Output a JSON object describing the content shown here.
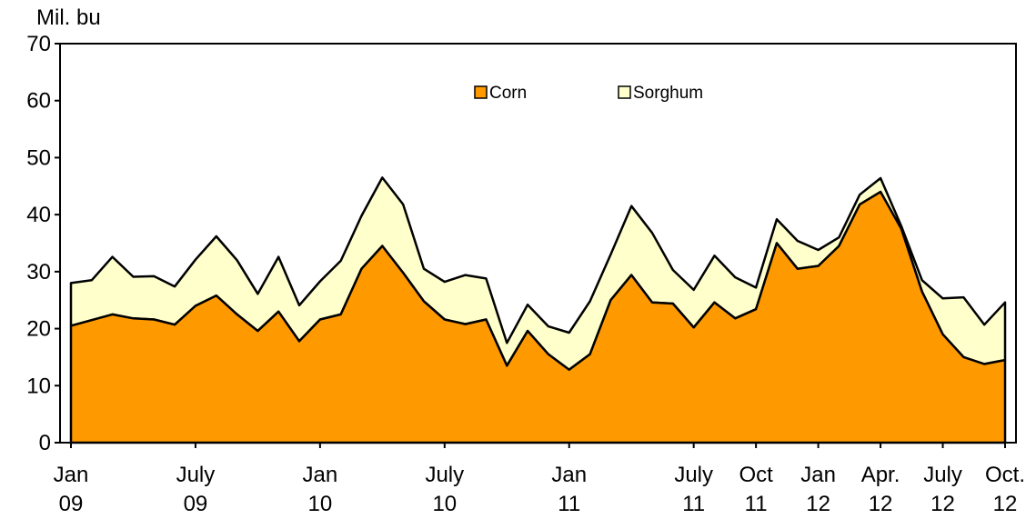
{
  "chart_data": {
    "type": "area",
    "stacked": true,
    "ylabel": "Mil. bu",
    "ylim": [
      0,
      70
    ],
    "yticks": [
      0,
      10,
      20,
      30,
      40,
      50,
      60,
      70
    ],
    "grid": false,
    "legend_position": "top-center",
    "x_tick_labels": [
      {
        "month": 0,
        "line1": "Jan",
        "line2": "09"
      },
      {
        "month": 6,
        "line1": "July",
        "line2": "09"
      },
      {
        "month": 12,
        "line1": "Jan",
        "line2": "10"
      },
      {
        "month": 18,
        "line1": "July",
        "line2": "10"
      },
      {
        "month": 24,
        "line1": "Jan",
        "line2": "11"
      },
      {
        "month": 30,
        "line1": "July",
        "line2": "11"
      },
      {
        "month": 33,
        "line1": "Oct",
        "line2": "11"
      },
      {
        "month": 36,
        "line1": "Jan",
        "line2": "12"
      },
      {
        "month": 39,
        "line1": "Apr.",
        "line2": "12"
      },
      {
        "month": 42,
        "line1": "July",
        "line2": "12"
      },
      {
        "month": 45,
        "line1": "Oct.",
        "line2": "12"
      }
    ],
    "series": [
      {
        "name": "Corn",
        "color": "#FF9900",
        "values": [
          20.5,
          21.5,
          22.5,
          21.8,
          21.6,
          20.7,
          24.0,
          25.8,
          22.5,
          19.6,
          23.0,
          17.8,
          21.6,
          22.5,
          30.5,
          34.5,
          29.8,
          24.8,
          21.6,
          20.8,
          21.6,
          13.5,
          19.6,
          15.5,
          12.8,
          15.5,
          25.0,
          29.4,
          24.6,
          24.4,
          20.2,
          24.6,
          21.8,
          23.4,
          35.0,
          30.5,
          31.0,
          34.5,
          41.8,
          44.0,
          37.5,
          26.5,
          19.0,
          15.0,
          13.8,
          14.5
        ]
      },
      {
        "name": "Sorghum",
        "color": "#FFFFCC",
        "values": [
          7.5,
          7.0,
          10.1,
          7.3,
          7.6,
          6.7,
          8.1,
          10.4,
          9.5,
          6.5,
          9.6,
          6.3,
          6.7,
          9.4,
          9.3,
          12.0,
          12.0,
          5.7,
          6.6,
          8.6,
          7.2,
          4.0,
          4.6,
          4.9,
          6.5,
          9.3,
          8.0,
          12.1,
          12.2,
          5.9,
          6.6,
          8.2,
          7.2,
          3.8,
          4.2,
          4.9,
          2.8,
          1.5,
          1.7,
          2.4,
          0.5,
          2.0,
          6.3,
          10.5,
          6.9,
          10.1
        ]
      }
    ]
  }
}
